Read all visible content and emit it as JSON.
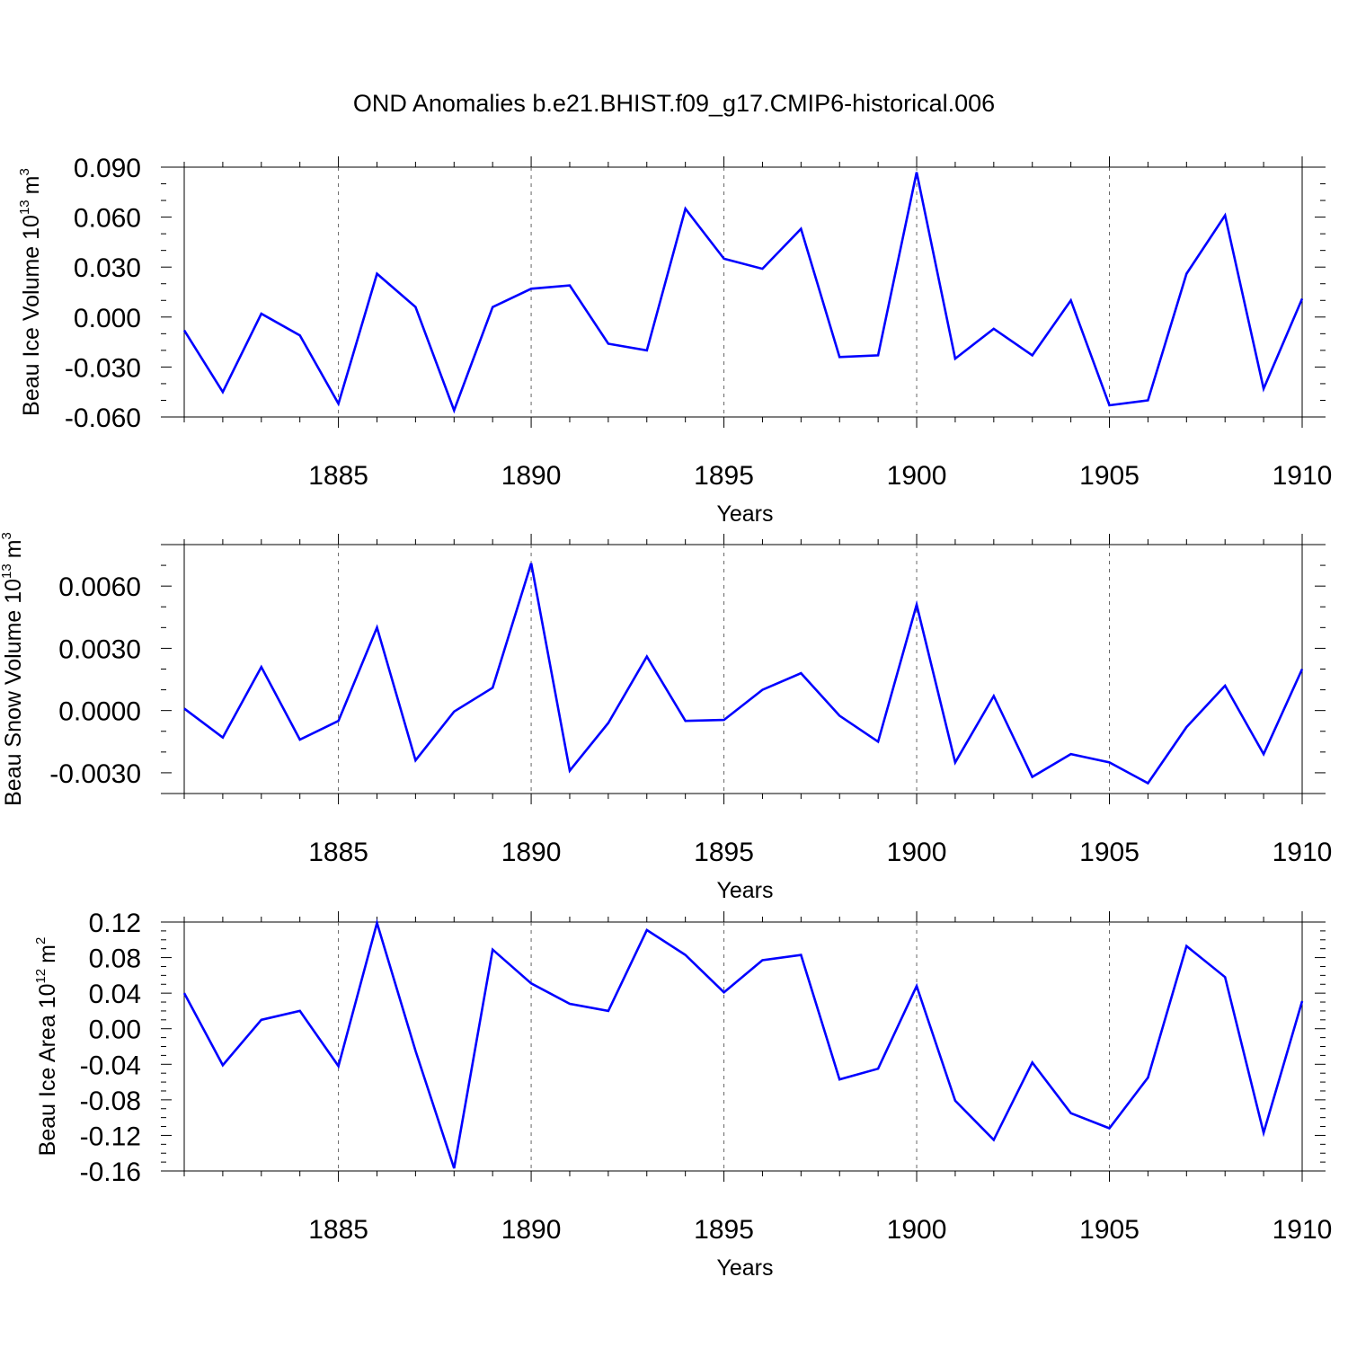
{
  "figure": {
    "title": "OND Anomalies b.e21.BHIST.f09_g17.CMIP6-historical.006"
  },
  "chart_data": [
    {
      "type": "line",
      "title": "",
      "ylabel": "Beau Ice Volume 10",
      "ylabel_exponent": "13",
      "ylabel_unit": "m",
      "ylabel_unit_exponent": "3",
      "xlabel": "Years",
      "xlim": [
        1881,
        1910
      ],
      "ylim": [
        -0.06,
        0.09
      ],
      "xticks": [
        1885,
        1890,
        1895,
        1900,
        1905,
        1910
      ],
      "xtick_labels": [
        "1885",
        "1890",
        "1895",
        "1900",
        "1905",
        "1910"
      ],
      "yticks": [
        -0.06,
        -0.03,
        0.0,
        0.03,
        0.06,
        0.09
      ],
      "ytick_labels": [
        "-0.060",
        "-0.030",
        "0.000",
        "0.030",
        "0.060",
        "0.090"
      ],
      "y_minor_step": 0.01,
      "grid": "dashed vertical at major x ticks",
      "color": "#0000ff",
      "x": [
        1881,
        1882,
        1883,
        1884,
        1885,
        1886,
        1887,
        1888,
        1889,
        1890,
        1891,
        1892,
        1893,
        1894,
        1895,
        1896,
        1897,
        1898,
        1899,
        1900,
        1901,
        1902,
        1903,
        1904,
        1905,
        1906,
        1907,
        1908,
        1909,
        1910
      ],
      "values": [
        -0.008,
        -0.045,
        0.002,
        -0.011,
        -0.052,
        0.026,
        0.006,
        -0.056,
        0.006,
        0.017,
        0.019,
        -0.016,
        -0.02,
        0.065,
        0.035,
        0.029,
        0.053,
        -0.024,
        -0.023,
        0.087,
        -0.025,
        -0.007,
        -0.023,
        0.01,
        -0.053,
        -0.05,
        0.026,
        0.061,
        -0.043,
        0.011
      ]
    },
    {
      "type": "line",
      "title": "",
      "ylabel": "Beau Snow Volume 10",
      "ylabel_exponent": "13",
      "ylabel_unit": "m",
      "ylabel_unit_exponent": "3",
      "xlabel": "Years",
      "xlim": [
        1881,
        1910
      ],
      "ylim": [
        -0.004,
        0.008
      ],
      "xticks": [
        1885,
        1890,
        1895,
        1900,
        1905,
        1910
      ],
      "xtick_labels": [
        "1885",
        "1890",
        "1895",
        "1900",
        "1905",
        "1910"
      ],
      "yticks": [
        -0.003,
        0.0,
        0.003,
        0.006
      ],
      "ytick_labels": [
        "-0.0030",
        "0.0000",
        "0.0030",
        "0.0060"
      ],
      "y_minor_step": 0.001,
      "grid": "dashed vertical at major x ticks",
      "color": "#0000ff",
      "x": [
        1881,
        1882,
        1883,
        1884,
        1885,
        1886,
        1887,
        1888,
        1889,
        1890,
        1891,
        1892,
        1893,
        1894,
        1895,
        1896,
        1897,
        1898,
        1899,
        1900,
        1901,
        1902,
        1903,
        1904,
        1905,
        1906,
        1907,
        1908,
        1909,
        1910
      ],
      "values": [
        0.0001,
        -0.0013,
        0.0021,
        -0.0014,
        -0.0005,
        0.004,
        -0.0024,
        -5e-05,
        0.0011,
        0.0071,
        -0.0029,
        -0.0006,
        0.0026,
        -0.0005,
        -0.00045,
        0.001,
        0.0018,
        -0.00025,
        -0.0015,
        0.0051,
        -0.0025,
        0.0007,
        -0.0032,
        -0.0021,
        -0.0025,
        -0.0035,
        -0.0008,
        0.0012,
        -0.0021,
        0.002
      ]
    },
    {
      "type": "line",
      "title": "",
      "ylabel": "Beau Ice Area 10",
      "ylabel_exponent": "12",
      "ylabel_unit": "m",
      "ylabel_unit_exponent": "2",
      "xlabel": "Years",
      "xlim": [
        1881,
        1910
      ],
      "ylim": [
        -0.16,
        0.12
      ],
      "xticks": [
        1885,
        1890,
        1895,
        1900,
        1905,
        1910
      ],
      "xtick_labels": [
        "1885",
        "1890",
        "1895",
        "1900",
        "1905",
        "1910"
      ],
      "yticks": [
        -0.16,
        -0.12,
        -0.08,
        -0.04,
        0.0,
        0.04,
        0.08,
        0.12
      ],
      "ytick_labels": [
        "-0.16",
        "-0.12",
        "-0.08",
        "-0.04",
        "0.00",
        "0.04",
        "0.08",
        "0.12"
      ],
      "y_minor_step": 0.01,
      "grid": "dashed vertical at major x ticks",
      "color": "#0000ff",
      "x": [
        1881,
        1882,
        1883,
        1884,
        1885,
        1886,
        1887,
        1888,
        1889,
        1890,
        1891,
        1892,
        1893,
        1894,
        1895,
        1896,
        1897,
        1898,
        1899,
        1900,
        1901,
        1902,
        1903,
        1904,
        1905,
        1906,
        1907,
        1908,
        1909,
        1910
      ],
      "values": [
        0.04,
        -0.041,
        0.01,
        0.02,
        -0.042,
        0.119,
        -0.025,
        -0.157,
        0.089,
        0.051,
        0.028,
        0.02,
        0.111,
        0.083,
        0.041,
        0.077,
        0.083,
        -0.057,
        -0.045,
        0.048,
        -0.081,
        -0.125,
        -0.038,
        -0.095,
        -0.112,
        -0.055,
        0.093,
        0.058,
        -0.117,
        0.031
      ]
    }
  ]
}
